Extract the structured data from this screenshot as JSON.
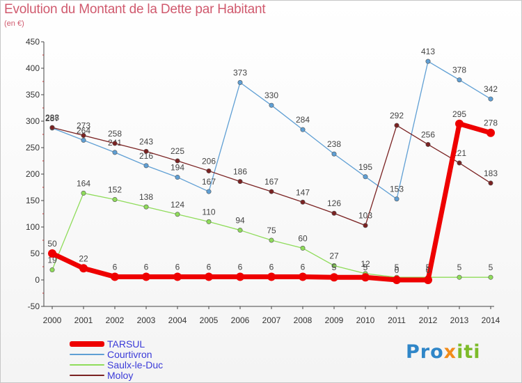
{
  "title": "Evolution du Montant de la Dette par Habitant",
  "subtitle": "(en €)",
  "logo": {
    "parts": [
      "Pro",
      "x",
      "iti"
    ]
  },
  "chart_data": {
    "type": "line",
    "x": [
      "2000",
      "2001",
      "2002",
      "2003",
      "2004",
      "2005",
      "2006",
      "2007",
      "2008",
      "2009",
      "2010",
      "2011",
      "2012",
      "2013",
      "2014"
    ],
    "ylim": [
      -50,
      450
    ],
    "yticks": [
      -50,
      0,
      50,
      100,
      150,
      200,
      250,
      300,
      350,
      400,
      450
    ],
    "grid": false,
    "legend_position": "bottom-left",
    "series": [
      {
        "name": "TARSUL",
        "color": "#ee0000",
        "values": [
          50,
          22,
          6,
          6,
          6,
          6,
          6,
          6,
          6,
          5,
          5,
          0,
          0,
          295,
          278
        ],
        "labels": [
          "50",
          "22",
          "6",
          "6",
          "6",
          "6",
          "6",
          "6",
          "6",
          "5",
          "5",
          "0",
          "0",
          "295",
          "278"
        ]
      },
      {
        "name": "Courtivron",
        "color": "#5f9fd4",
        "values": [
          287,
          264,
          241,
          216,
          194,
          167,
          373,
          330,
          284,
          238,
          195,
          153,
          413,
          378,
          342
        ],
        "labels": [
          "287",
          "264",
          "241",
          "216",
          "194",
          "167",
          "373",
          "330",
          "284",
          "238",
          "195",
          "153",
          "413",
          "378",
          "342"
        ]
      },
      {
        "name": "Saulx-le-Duc",
        "color": "#8fdc5a",
        "values": [
          19,
          164,
          152,
          138,
          124,
          110,
          94,
          75,
          60,
          27,
          12,
          5,
          5,
          5,
          5
        ],
        "labels": [
          "19",
          "164",
          "152",
          "138",
          "124",
          "110",
          "94",
          "75",
          "60",
          "27",
          "12",
          "5",
          "5",
          "5",
          "5"
        ]
      },
      {
        "name": "Moloy",
        "color": "#7a2222",
        "values": [
          288,
          273,
          258,
          243,
          225,
          206,
          186,
          167,
          147,
          126,
          103,
          292,
          256,
          221,
          183
        ],
        "labels": [
          "288",
          "273",
          "258",
          "243",
          "225",
          "206",
          "186",
          "167",
          "147",
          "126",
          "103",
          "292",
          "256",
          "221",
          "183"
        ]
      }
    ]
  }
}
